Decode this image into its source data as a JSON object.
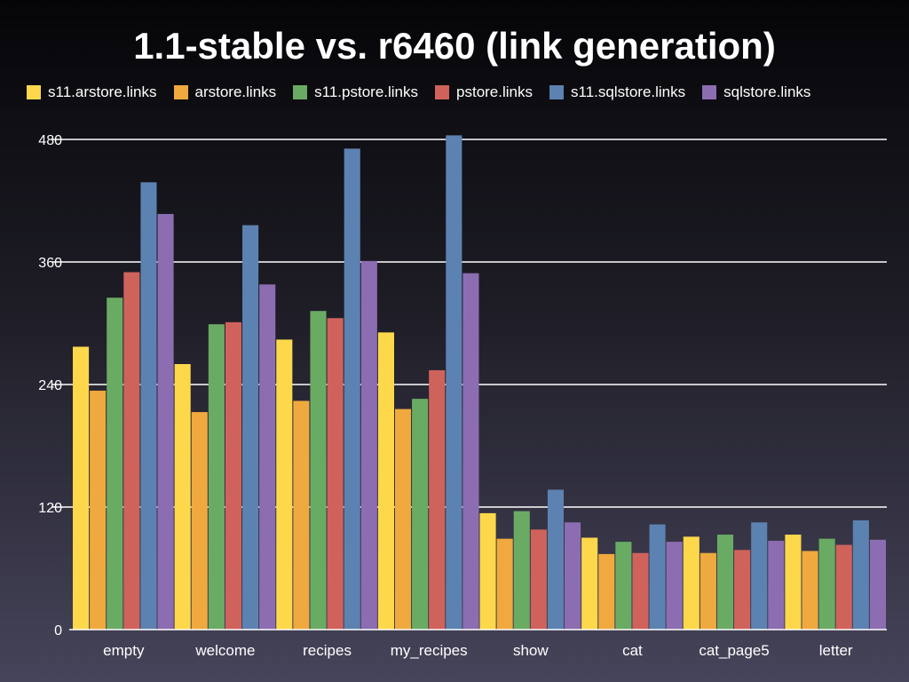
{
  "chart_data": {
    "type": "bar",
    "title": "1.1-stable vs. r6460 (link generation)",
    "categories": [
      "empty",
      "welcome",
      "recipes",
      "my_recipes",
      "show",
      "cat",
      "cat_page5",
      "letter"
    ],
    "series": [
      {
        "name": "s11.arstore.links",
        "color": "#fdd84b",
        "values": [
          277,
          260,
          284,
          291,
          114,
          90,
          91,
          93
        ]
      },
      {
        "name": "arstore.links",
        "color": "#efa93e",
        "values": [
          234,
          213,
          224,
          216,
          89,
          74,
          75,
          77
        ]
      },
      {
        "name": "s11.pstore.links",
        "color": "#6aab64",
        "values": [
          325,
          299,
          312,
          226,
          116,
          86,
          93,
          89
        ]
      },
      {
        "name": "pstore.links",
        "color": "#d0625c",
        "values": [
          350,
          301,
          305,
          254,
          98,
          75,
          78,
          83
        ]
      },
      {
        "name": "s11.sqlstore.links",
        "color": "#5c82b1",
        "values": [
          438,
          396,
          471,
          484,
          137,
          103,
          105,
          107
        ]
      },
      {
        "name": "sqlstore.links",
        "color": "#8d6db2",
        "values": [
          407,
          338,
          361,
          349,
          105,
          86,
          87,
          88
        ]
      }
    ],
    "yticks": [
      0,
      120,
      240,
      360,
      480
    ],
    "ylim": [
      0,
      480
    ],
    "grid": true,
    "legend_position": "top"
  }
}
